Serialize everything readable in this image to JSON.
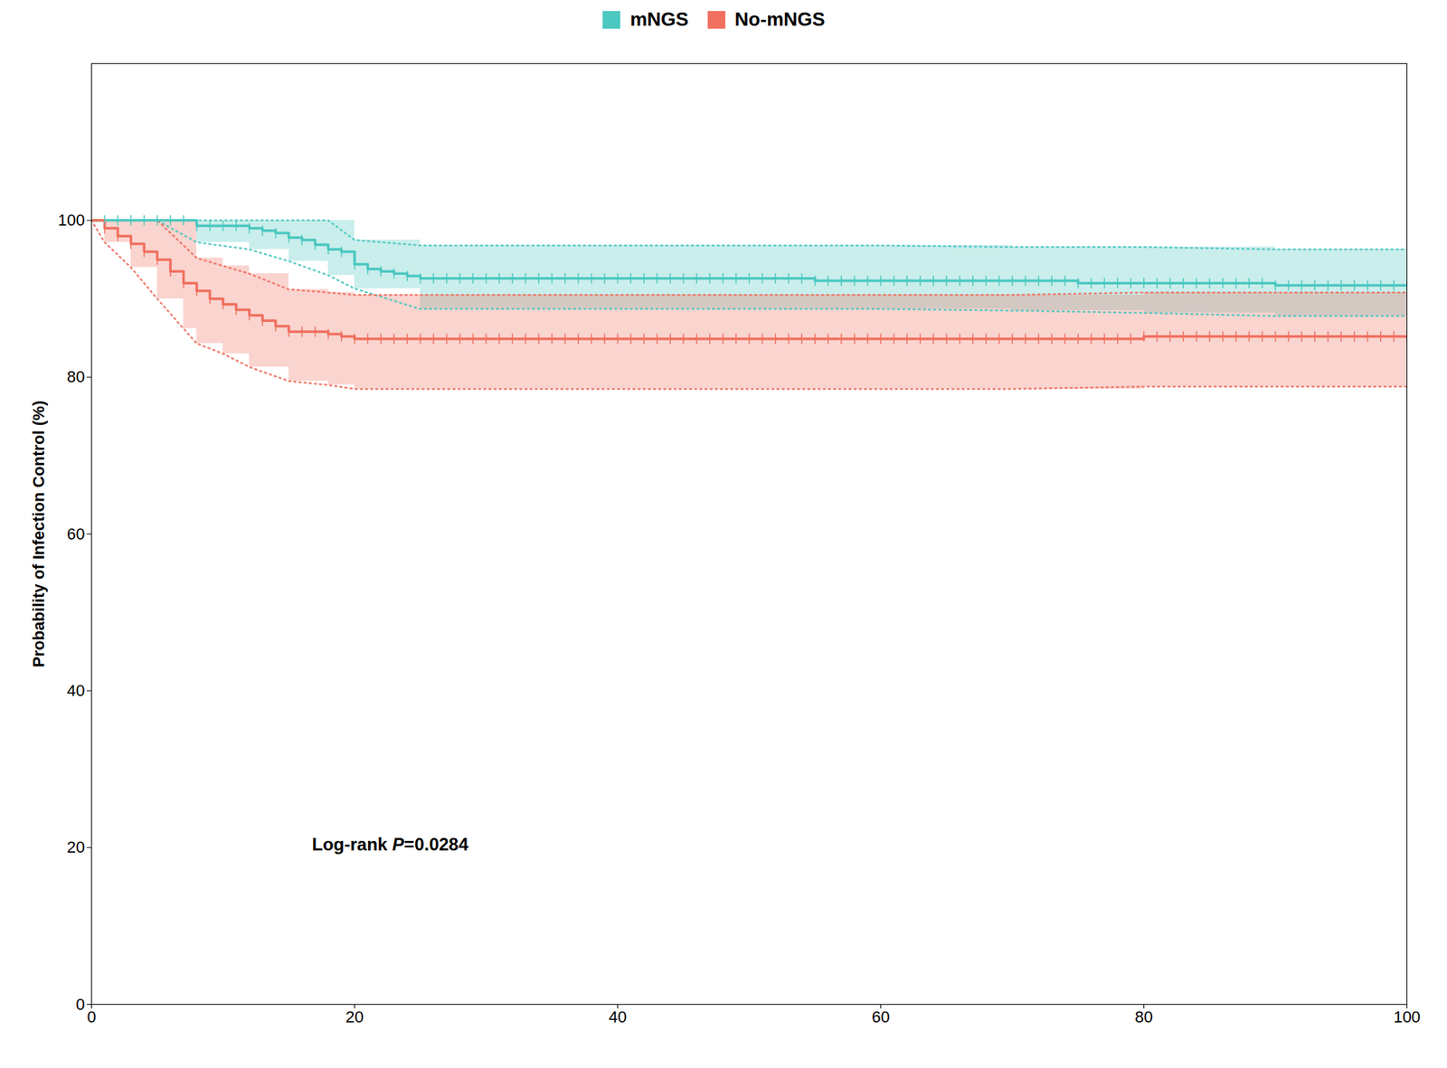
{
  "chart_data": {
    "type": "line",
    "ylabel": "Probability of Infection Control (%)",
    "xlim": [
      0,
      100
    ],
    "ylim": [
      0,
      120
    ],
    "xticks": [
      0,
      20,
      40,
      60,
      80,
      100
    ],
    "yticks": [
      0,
      20,
      40,
      60,
      80,
      100
    ],
    "line_style": "step",
    "legend": "upper center",
    "annotation": "Log-rank P=0.0284",
    "series": [
      {
        "name": "mNGS",
        "color": "#4CC8C0",
        "x": [
          0,
          1,
          2,
          3,
          4,
          5,
          6,
          7,
          8,
          9,
          10,
          11,
          12,
          13,
          14,
          15,
          16,
          17,
          18,
          19,
          20,
          21,
          22,
          23,
          24,
          25,
          30,
          35,
          40,
          45,
          50,
          55,
          60,
          65,
          70,
          75,
          80,
          85,
          90,
          95,
          100
        ],
        "values": [
          100,
          100,
          100,
          100,
          100,
          100,
          100,
          100,
          99.3,
          99.3,
          99.3,
          99.3,
          99.0,
          98.7,
          98.4,
          97.8,
          97.5,
          96.9,
          96.3,
          96.0,
          94.4,
          93.8,
          93.5,
          93.2,
          92.9,
          92.6,
          92.6,
          92.6,
          92.6,
          92.6,
          92.6,
          92.3,
          92.3,
          92.3,
          92.3,
          92.0,
          92.0,
          92.0,
          91.7,
          91.7,
          91.7
        ],
        "ci_upper": {
          "x": [
            0,
            1,
            5,
            8,
            12,
            15,
            18,
            20,
            25,
            30,
            40,
            50,
            60,
            70,
            80,
            90,
            100
          ],
          "values": [
            100,
            100,
            100,
            100,
            100,
            100,
            100,
            97.5,
            96.8,
            96.8,
            96.8,
            96.8,
            96.8,
            96.6,
            96.6,
            96.3,
            96.3
          ]
        },
        "ci_lower": {
          "x": [
            0,
            5,
            8,
            12,
            15,
            18,
            20,
            25,
            30,
            40,
            50,
            60,
            70,
            80,
            90,
            100
          ],
          "values": [
            100,
            100,
            97.2,
            96.3,
            94.8,
            93.0,
            91.3,
            88.7,
            88.7,
            88.7,
            88.7,
            88.7,
            88.5,
            88.2,
            87.8,
            87.8
          ]
        },
        "censor_times": [
          1,
          2,
          3,
          4,
          5,
          6,
          7,
          8,
          9,
          10,
          11,
          12,
          13,
          14,
          15,
          16,
          17,
          18,
          19,
          20,
          21,
          22,
          23,
          24,
          25,
          26,
          27,
          28,
          29,
          30,
          31,
          32,
          33,
          34,
          35,
          36,
          37,
          38,
          39,
          40,
          41,
          42,
          43,
          44,
          45,
          46,
          47,
          48,
          49,
          50,
          51,
          52,
          53,
          54,
          55,
          56,
          57,
          58,
          59,
          60,
          61,
          62,
          63,
          64,
          65,
          66,
          67,
          68,
          69,
          70,
          71,
          72,
          73,
          74,
          75,
          76,
          77,
          78,
          79,
          80,
          81,
          82,
          83,
          84,
          85,
          86,
          87,
          88,
          89,
          90,
          91,
          92,
          93,
          94,
          95,
          96,
          97,
          98,
          99,
          100
        ]
      },
      {
        "name": "No-mNGS",
        "color": "#F07060",
        "x": [
          0,
          1,
          2,
          3,
          4,
          5,
          6,
          7,
          8,
          9,
          10,
          11,
          12,
          13,
          14,
          15,
          16,
          17,
          18,
          19,
          20,
          25,
          30,
          35,
          40,
          45,
          50,
          55,
          60,
          65,
          70,
          75,
          80,
          85,
          90,
          95,
          100
        ],
        "values": [
          100,
          99.0,
          98.0,
          97.0,
          96.0,
          95.0,
          93.5,
          92.0,
          91.0,
          90.0,
          89.3,
          88.6,
          87.9,
          87.2,
          86.5,
          85.8,
          85.8,
          85.8,
          85.5,
          85.2,
          84.9,
          84.9,
          84.9,
          84.9,
          84.9,
          84.9,
          84.9,
          84.9,
          84.9,
          84.9,
          84.9,
          84.9,
          85.2,
          85.2,
          85.2,
          85.2,
          85.2
        ],
        "ci_upper": {
          "x": [
            0,
            1,
            5,
            8,
            10,
            12,
            15,
            18,
            20,
            25,
            30,
            40,
            50,
            60,
            70,
            80,
            90,
            100
          ],
          "values": [
            100,
            100,
            100,
            95.2,
            94.2,
            93.2,
            91.2,
            90.8,
            90.5,
            90.5,
            90.5,
            90.5,
            90.5,
            90.5,
            90.5,
            90.8,
            90.8,
            90.8
          ]
        },
        "ci_lower": {
          "x": [
            0,
            1,
            3,
            5,
            7,
            8,
            10,
            12,
            15,
            18,
            20,
            25,
            30,
            40,
            50,
            60,
            70,
            80,
            90,
            100
          ],
          "values": [
            100,
            97.2,
            94.0,
            90.0,
            86.2,
            84.3,
            83.0,
            81.3,
            79.5,
            79.0,
            78.5,
            78.5,
            78.5,
            78.5,
            78.5,
            78.5,
            78.5,
            78.8,
            78.8,
            78.8
          ]
        },
        "censor_times": [
          1,
          2,
          3,
          4,
          5,
          6,
          7,
          8,
          9,
          10,
          11,
          12,
          13,
          14,
          15,
          16,
          17,
          18,
          19,
          20,
          21,
          22,
          23,
          24,
          25,
          26,
          27,
          28,
          29,
          30,
          31,
          32,
          33,
          34,
          35,
          36,
          37,
          38,
          39,
          40,
          41,
          42,
          43,
          44,
          45,
          46,
          47,
          48,
          49,
          50,
          51,
          52,
          53,
          54,
          55,
          56,
          57,
          58,
          59,
          60,
          61,
          62,
          63,
          64,
          65,
          66,
          67,
          68,
          69,
          70,
          71,
          72,
          73,
          74,
          75,
          76,
          77,
          78,
          79,
          80,
          81,
          82,
          83,
          84,
          85,
          86,
          87,
          88,
          89,
          90,
          91,
          92,
          93,
          94,
          95,
          96,
          97,
          98,
          99,
          100
        ]
      }
    ]
  }
}
